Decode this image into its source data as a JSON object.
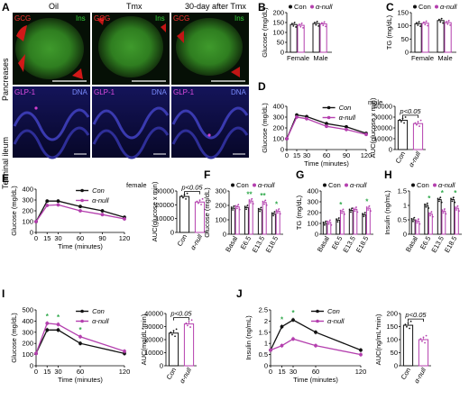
{
  "colors": {
    "con": "#111111",
    "anull": "#b43fae",
    "sig": "#2ea84a"
  },
  "panelA": {
    "label": "A",
    "columns": [
      "Oil",
      "Tmx",
      "30-day after Tmx"
    ],
    "rows": [
      "Pancreases",
      "Terminal ileum"
    ],
    "stain_top": {
      "a": "GCG",
      "b": "Ins"
    },
    "stain_bottom": {
      "a": "GLP-1",
      "b": "DNA"
    }
  },
  "chart_data": [
    {
      "id": "B",
      "type": "bar",
      "categories": [
        "Female",
        "Male"
      ],
      "ylabel": "Glucose (mg/dL)",
      "ylim": [
        0,
        200
      ],
      "yticks": [
        0,
        50,
        100,
        150,
        200
      ],
      "series": [
        {
          "name": "Con",
          "values": [
            140,
            145
          ]
        },
        {
          "name": "α-null",
          "values": [
            136,
            143
          ]
        }
      ],
      "legend": [
        "Con",
        "α-null"
      ]
    },
    {
      "id": "C",
      "type": "bar",
      "categories": [
        "Female",
        "Male"
      ],
      "ylabel": "TG (mg/dL)",
      "ylim": [
        0,
        150
      ],
      "yticks": [
        0,
        50,
        100,
        150
      ],
      "series": [
        {
          "name": "Con",
          "values": [
            108,
            120
          ]
        },
        {
          "name": "α-null",
          "values": [
            110,
            112
          ]
        }
      ],
      "legend": [
        "Con",
        "α-null"
      ]
    },
    {
      "id": "D",
      "type": "line",
      "annotation": "male",
      "x": [
        0,
        15,
        30,
        60,
        90,
        120
      ],
      "xlabel": "Time (minutes)",
      "ylabel": "Glucose (mg/dL)",
      "ylim": [
        0,
        400
      ],
      "yticks": [
        0,
        100,
        200,
        300,
        400
      ],
      "series": [
        {
          "name": "Con",
          "values": [
            100,
            320,
            305,
            240,
            210,
            150
          ]
        },
        {
          "name": "α-null",
          "values": [
            100,
            300,
            285,
            215,
            185,
            140
          ]
        }
      ],
      "auc": {
        "ylabel": "AUC(glucose x min)",
        "ylim": [
          0,
          40000
        ],
        "yticks": [
          0,
          10000,
          20000,
          30000,
          40000
        ],
        "categories": [
          "Con",
          "α-null"
        ],
        "values": [
          27000,
          24000
        ],
        "pvalue": "p<0.05"
      }
    },
    {
      "id": "E",
      "type": "line",
      "annotation": "female",
      "x": [
        0,
        15,
        30,
        60,
        90,
        120
      ],
      "xlabel": "Time (minutes)",
      "ylabel": "Glucose (mg/dL)",
      "ylim": [
        0,
        400
      ],
      "yticks": [
        0,
        100,
        200,
        300,
        400
      ],
      "series": [
        {
          "name": "Con",
          "values": [
            100,
            290,
            290,
            240,
            200,
            140
          ]
        },
        {
          "name": "α-null",
          "values": [
            100,
            250,
            255,
            200,
            165,
            125
          ]
        }
      ],
      "auc": {
        "ylabel": "AUC(glucose x min)",
        "ylim": [
          0,
          30000
        ],
        "yticks": [
          0,
          10000,
          20000,
          30000
        ],
        "categories": [
          "Con",
          "α-null"
        ],
        "values": [
          26000,
          22000
        ],
        "pvalue": "p<0.05"
      }
    },
    {
      "id": "F",
      "type": "bar",
      "categories": [
        "Basal",
        "E6.5",
        "E13.5",
        "E18.5"
      ],
      "ylabel": "Glucose (mg/dL)",
      "ylim": [
        0,
        300
      ],
      "yticks": [
        0,
        100,
        200,
        300
      ],
      "series": [
        {
          "name": "Con",
          "values": [
            180,
            185,
            170,
            140
          ]
        },
        {
          "name": "α-null",
          "values": [
            190,
            230,
            220,
            160
          ]
        }
      ],
      "legend": [
        "Con",
        "α-null"
      ],
      "sig": [
        "",
        "**",
        "**",
        "*"
      ]
    },
    {
      "id": "G",
      "type": "bar",
      "categories": [
        "Basal",
        "E6.5",
        "E13.5",
        "E18.5"
      ],
      "ylabel": "TG (mg/dL)",
      "ylim": [
        0,
        400
      ],
      "yticks": [
        0,
        100,
        200,
        300,
        400
      ],
      "series": [
        {
          "name": "Con",
          "values": [
            100,
            130,
            220,
            180
          ]
        },
        {
          "name": "α-null",
          "values": [
            110,
            210,
            230,
            240
          ]
        }
      ],
      "legend": [
        "Con",
        "α-null"
      ],
      "sig": [
        "",
        "*",
        "",
        "*"
      ]
    },
    {
      "id": "H",
      "type": "bar",
      "categories": [
        "Basal",
        "E6.5",
        "E13.5",
        "E18.5"
      ],
      "ylabel": "Insulin (ng/mL)",
      "ylim": [
        0,
        1.5
      ],
      "yticks": [
        0,
        0.5,
        1.0,
        1.5
      ],
      "series": [
        {
          "name": "Con",
          "values": [
            0.5,
            1.0,
            1.2,
            1.2
          ]
        },
        {
          "name": "α-null",
          "values": [
            0.45,
            0.7,
            0.8,
            0.9
          ]
        }
      ],
      "legend": [
        "Con",
        "α-null"
      ],
      "sig": [
        "",
        "*",
        "*",
        "*"
      ]
    },
    {
      "id": "I",
      "type": "line",
      "x": [
        0,
        15,
        30,
        60,
        120
      ],
      "xlabel": "Time (minutes)",
      "ylabel": "Glucose (mg/dL)",
      "ylim": [
        0,
        500
      ],
      "yticks": [
        0,
        100,
        200,
        300,
        400,
        500
      ],
      "series": [
        {
          "name": "Con",
          "values": [
            110,
            320,
            320,
            200,
            110
          ]
        },
        {
          "name": "α-null",
          "values": [
            110,
            380,
            370,
            260,
            130
          ]
        }
      ],
      "sig_x": [
        15,
        30,
        60
      ],
      "auc": {
        "ylabel": "AUC(mg/dL*min)",
        "ylim": [
          0,
          40000
        ],
        "yticks": [
          0,
          10000,
          20000,
          30000,
          40000
        ],
        "categories": [
          "Con",
          "α-null"
        ],
        "values": [
          25000,
          32000
        ],
        "pvalue": "p<0.05"
      }
    },
    {
      "id": "J",
      "type": "line",
      "x": [
        0,
        15,
        30,
        60,
        120
      ],
      "xlabel": "Time (minutes)",
      "ylabel": "Insulin (ng/mL)",
      "ylim": [
        0,
        2.5
      ],
      "yticks": [
        0,
        0.5,
        1.0,
        1.5,
        2.0,
        2.5
      ],
      "series": [
        {
          "name": "Con",
          "values": [
            0.7,
            1.75,
            2.05,
            1.5,
            0.7
          ]
        },
        {
          "name": "α-null",
          "values": [
            0.7,
            0.9,
            1.2,
            0.9,
            0.5
          ]
        }
      ],
      "sig_x": [
        15,
        30
      ],
      "auc": {
        "ylabel": "AUC(ng/mL*min)",
        "ylim": [
          0,
          200
        ],
        "yticks": [
          0,
          50,
          100,
          150,
          200
        ],
        "categories": [
          "Con",
          "α-null"
        ],
        "values": [
          155,
          100
        ],
        "pvalue": "p<0.05"
      }
    }
  ]
}
